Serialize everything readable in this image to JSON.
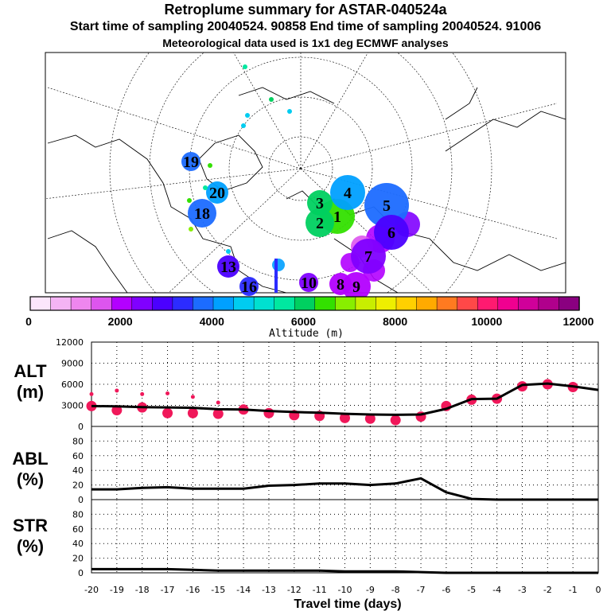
{
  "header": {
    "title": "Retroplume summary for ASTAR-040524a",
    "sampling": "Start time of sampling 20040524. 90858     End time of sampling 20040524. 91006",
    "met": "Meteorological data used is 1x1 deg ECMWF analyses"
  },
  "colorbar": {
    "label": "Altitude (m)",
    "ticks": [
      "0",
      "2000",
      "4000",
      "6000",
      "8000",
      "10000",
      "12000"
    ],
    "colors": [
      "#fce6fc",
      "#f4b4f4",
      "#ee86ee",
      "#dd55ee",
      "#b300ff",
      "#8000ff",
      "#4b00ff",
      "#2c2cff",
      "#1c6cff",
      "#00a0ff",
      "#00ccf0",
      "#00e0d0",
      "#00e8a0",
      "#00d060",
      "#33e000",
      "#88ee00",
      "#c8ee00",
      "#eeee00",
      "#ffd000",
      "#ffaa00",
      "#ff7a20",
      "#ff4848",
      "#ff1a70",
      "#f00090",
      "#d0009a",
      "#b0008c",
      "#8a0080"
    ]
  },
  "map_labels": [
    {
      "n": "1",
      "color": "#33e000"
    },
    {
      "n": "2",
      "color": "#00d060"
    },
    {
      "n": "3",
      "color": "#00d060"
    },
    {
      "n": "4",
      "color": "#00a0ff"
    },
    {
      "n": "5",
      "color": "#1c6cff"
    },
    {
      "n": "6",
      "color": "#4b00ff"
    },
    {
      "n": "7",
      "color": "#8000ff"
    },
    {
      "n": "8",
      "color": "#b300ff"
    },
    {
      "n": "9",
      "color": "#b300ff"
    },
    {
      "n": "10",
      "color": "#8000ff"
    },
    {
      "n": "13",
      "color": "#4b00ff"
    },
    {
      "n": "16",
      "color": "#2c2cff"
    },
    {
      "n": "18",
      "color": "#1c6cff"
    },
    {
      "n": "19",
      "color": "#1c6cff"
    },
    {
      "n": "20",
      "color": "#00a0ff"
    }
  ],
  "chart_data": [
    {
      "type": "line",
      "panel": "ALT",
      "ylabel": "ALT\n(m)",
      "ylabel_line1": "ALT",
      "ylabel_line2": "(m)",
      "ylim": [
        0,
        12000
      ],
      "yticks": [
        "0",
        "3000",
        "6000",
        "9000",
        "12000"
      ],
      "x": [
        -20,
        -19,
        -18,
        -17,
        -16,
        -15,
        -14,
        -13,
        -12,
        -11,
        -10,
        -9,
        -8,
        -7,
        -6,
        -5,
        -4,
        -3,
        -2,
        -1,
        0
      ],
      "values": [
        2900,
        2850,
        2750,
        2700,
        2650,
        2450,
        2400,
        2200,
        2050,
        1950,
        1800,
        1700,
        1650,
        1700,
        2500,
        3900,
        3950,
        5900,
        6100,
        5700,
        5200
      ],
      "markers": {
        "name": "plume clusters",
        "color": "#f0185a",
        "x": [
          -20,
          -20,
          -19,
          -19,
          -18,
          -18,
          -17,
          -17,
          -16,
          -16,
          -15,
          -15,
          -14,
          -13,
          -12,
          -11,
          -10,
          -9,
          -8,
          -7,
          -6,
          -5,
          -4,
          -3,
          -2,
          -1
        ],
        "y": [
          2900,
          4600,
          2300,
          5100,
          2700,
          4600,
          1900,
          4700,
          1900,
          4200,
          1800,
          3400,
          2400,
          1900,
          1600,
          1500,
          1200,
          1100,
          900,
          1400,
          2900,
          3800,
          3950,
          5700,
          6000,
          5600
        ]
      }
    },
    {
      "type": "line",
      "panel": "ABL",
      "ylabel_line1": "ABL",
      "ylabel_line2": "(%)",
      "ylim": [
        0,
        100
      ],
      "yticks": [
        "0",
        "20",
        "40",
        "60",
        "80"
      ],
      "x": [
        -20,
        -19,
        -18,
        -17,
        -16,
        -15,
        -14,
        -13,
        -12,
        -11,
        -10,
        -9,
        -8,
        -7,
        -6,
        -5,
        -4,
        -3,
        -2,
        -1,
        0
      ],
      "values": [
        14,
        14,
        16,
        17,
        15,
        15,
        15,
        19,
        20,
        22,
        22,
        20,
        22,
        29,
        10,
        1,
        0,
        0,
        0,
        0,
        0
      ]
    },
    {
      "type": "line",
      "panel": "STR",
      "ylabel_line1": "STR",
      "ylabel_line2": "(%)",
      "ylim": [
        0,
        100
      ],
      "yticks": [
        "0",
        "20",
        "40",
        "60",
        "80"
      ],
      "xlabel": "Travel time (days)",
      "xticks": [
        "-20",
        "-19",
        "-18",
        "-17",
        "-16",
        "-15",
        "-14",
        "-13",
        "-12",
        "-11",
        "-10",
        "-9",
        "-8",
        "-7",
        "-6",
        "-5",
        "-4",
        "-3",
        "-2",
        "-1",
        "0"
      ],
      "x": [
        -20,
        -19,
        -18,
        -17,
        -16,
        -15,
        -14,
        -13,
        -12,
        -11,
        -10,
        -9,
        -8,
        -7,
        -6,
        -5,
        -4,
        -3,
        -2,
        -1,
        0
      ],
      "values": [
        5,
        5,
        5,
        5,
        4,
        3,
        3,
        3,
        3,
        3,
        2,
        2,
        2,
        1,
        0,
        0,
        0,
        0,
        0,
        0,
        0
      ]
    }
  ]
}
